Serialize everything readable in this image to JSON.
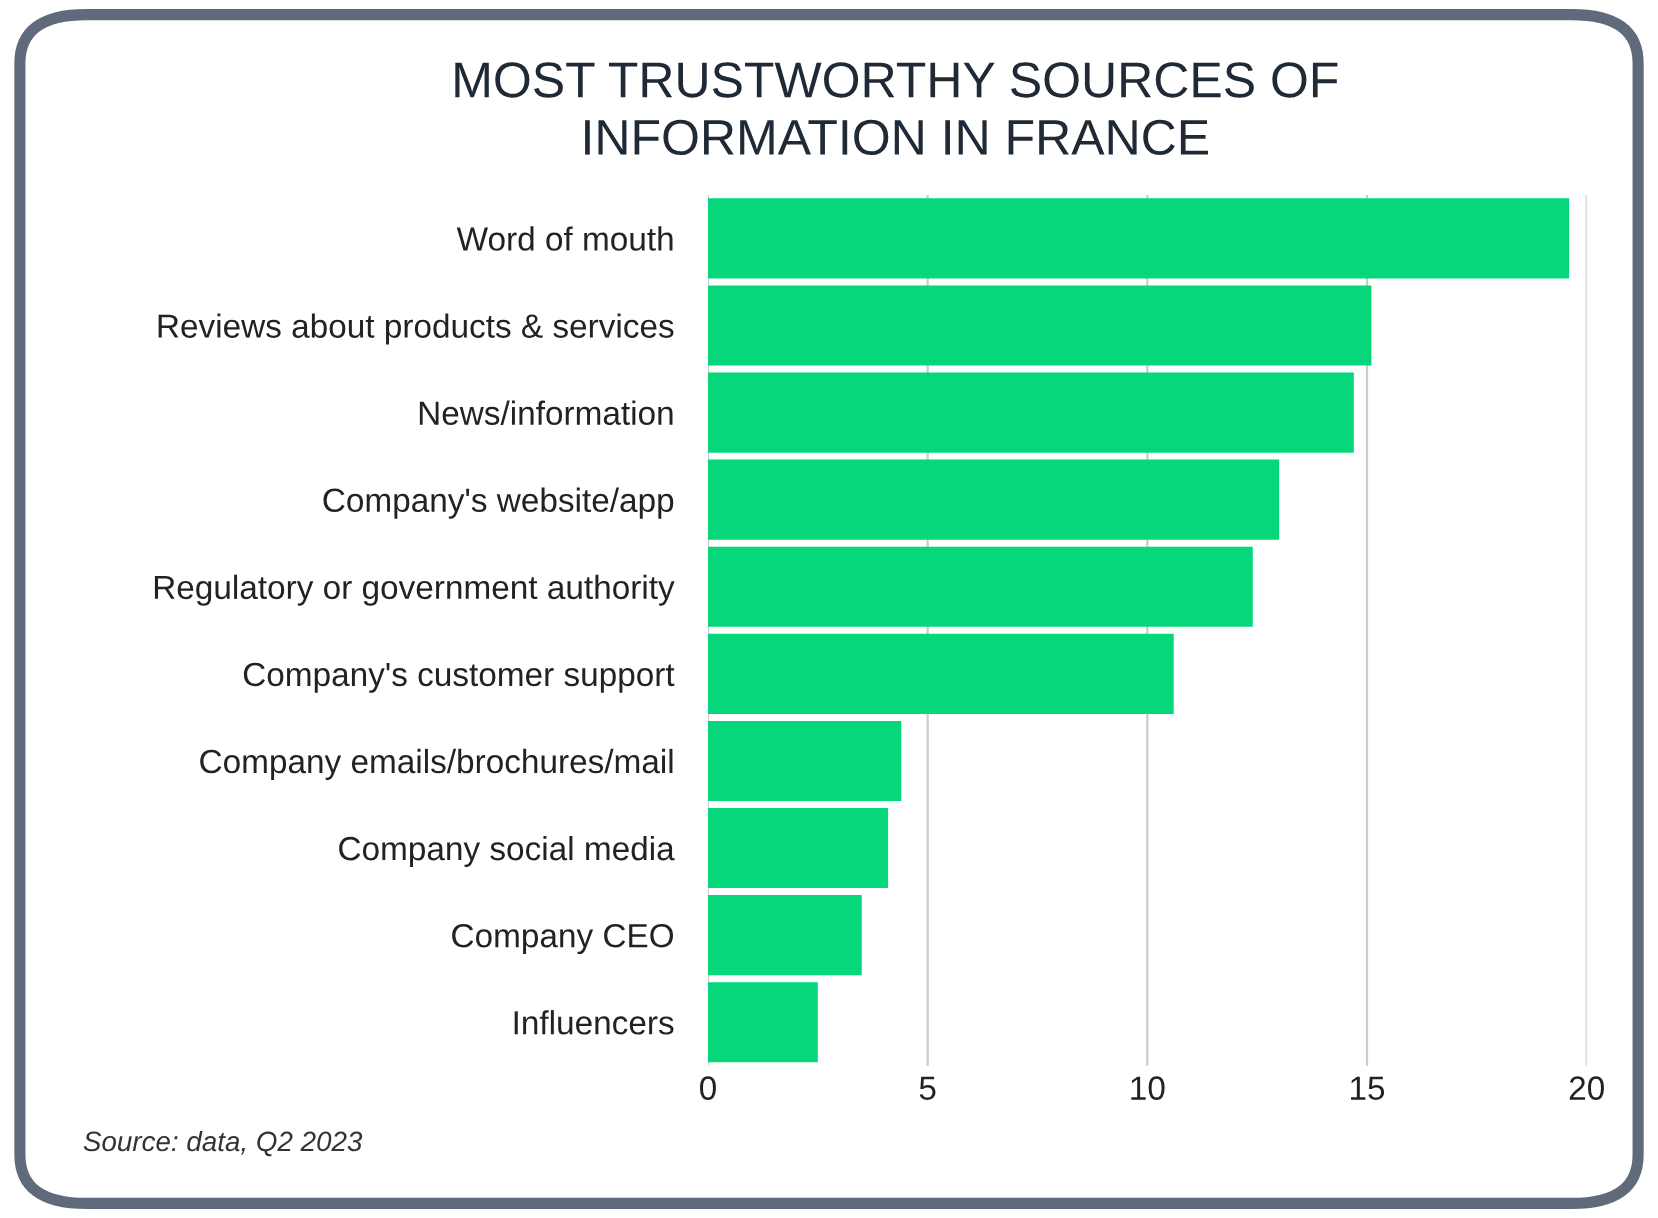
{
  "chart_data": {
    "type": "bar",
    "orientation": "horizontal",
    "title": "MOST TRUSTWORTHY SOURCES OF\nINFORMATION IN FRANCE",
    "categories": [
      "Word of mouth",
      "Reviews about products & services",
      "News/information",
      "Company's website/app",
      "Regulatory or government authority",
      "Company's customer support",
      "Company emails/brochures/mail",
      "Company social media",
      "Company CEO",
      "Influencers"
    ],
    "values": [
      19.6,
      15.1,
      14.7,
      13.0,
      12.4,
      10.6,
      4.4,
      4.1,
      3.5,
      2.5
    ],
    "color": "#06d77b",
    "xlim": [
      0,
      20
    ],
    "xticks": [
      0,
      5,
      10,
      15,
      20
    ],
    "grid": "x",
    "annotations": [
      "Source: data, Q2 2023"
    ]
  }
}
